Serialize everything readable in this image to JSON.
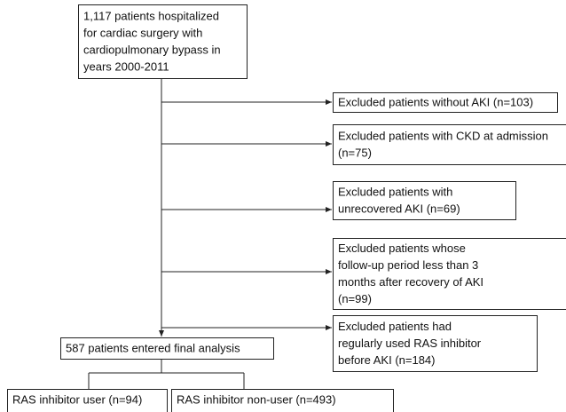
{
  "nodes": [
    {
      "lines": [
        "1,117 patients hospitalized",
        "for cardiac surgery with",
        "cardiopulmonary bypass in",
        "years 2000-2011"
      ]
    },
    {
      "lines": [
        "Excluded patients without AKI (n=103)"
      ]
    },
    {
      "lines": [
        "Excluded patients with CKD at admission",
        "(n=75)"
      ]
    },
    {
      "lines": [
        "Excluded patients with",
        "unrecovered AKI (n=69)"
      ]
    },
    {
      "lines": [
        "Excluded patients whose",
        "follow-up period  less than 3",
        "months after recovery of AKI",
        "(n=99)"
      ]
    },
    {
      "lines": [
        "Excluded patients had",
        "regularly used RAS inhibitor",
        "before AKI (n=184)"
      ]
    },
    {
      "lines": [
        "587 patients entered final analysis"
      ]
    },
    {
      "lines": [
        "RAS inhibitor user (n=94)"
      ]
    },
    {
      "lines": [
        "RAS inhibitor non-user (n=493)"
      ]
    }
  ]
}
